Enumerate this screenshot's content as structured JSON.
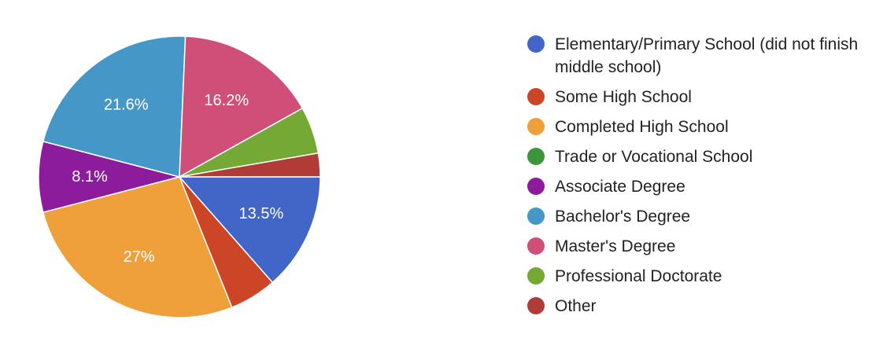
{
  "chart_data": {
    "type": "pie",
    "title": "",
    "start": "3 o'clock, clockwise",
    "legend_position": "right",
    "slices": [
      {
        "label": "Elementary/Primary School (did not finish middle school)",
        "value": 13.5,
        "color": "#4166c8",
        "data_label": "13.5%"
      },
      {
        "label": "Some High School",
        "value": 5.4,
        "color": "#cc4527",
        "data_label": ""
      },
      {
        "label": "Completed High School",
        "value": 27.0,
        "color": "#f0a03a",
        "data_label": "27%"
      },
      {
        "label": "Trade or Vocational School",
        "value": 0,
        "color": "#3b963b",
        "data_label": ""
      },
      {
        "label": "Associate Degree",
        "value": 8.1,
        "color": "#8c1c9b",
        "data_label": "8.1%"
      },
      {
        "label": "Bachelor's Degree",
        "value": 21.6,
        "color": "#4497c6",
        "data_label": "21.6%"
      },
      {
        "label": "Master's Degree",
        "value": 16.2,
        "color": "#cf4f79",
        "data_label": "16.2%"
      },
      {
        "label": "Professional Doctorate",
        "value": 5.4,
        "color": "#75a935",
        "data_label": ""
      },
      {
        "label": "Other",
        "value": 2.7,
        "color": "#b03c38",
        "data_label": ""
      }
    ]
  }
}
